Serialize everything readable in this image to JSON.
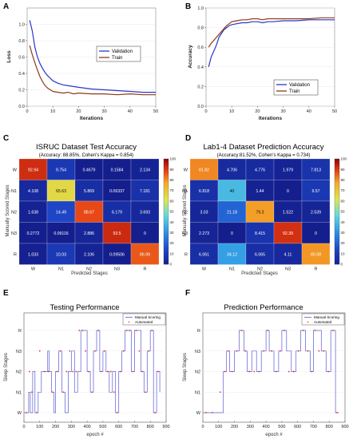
{
  "panel_letters": [
    "A",
    "B",
    "C",
    "D",
    "E",
    "F"
  ],
  "chart_data": [
    {
      "panel": "A",
      "type": "line",
      "xlabel": "Iterations",
      "ylabel": "Loss",
      "xlim": [
        0,
        50
      ],
      "ylim": [
        0,
        1.2
      ],
      "xticks": [
        "0",
        "10",
        "20",
        "30",
        "40",
        "50"
      ],
      "yticks": [
        "0.0",
        "0.2",
        "0.4",
        "0.6",
        "0.8",
        "1.0"
      ],
      "legend": "top-right",
      "series": [
        {
          "name": "Validation",
          "color": "#2b35c8",
          "x": [
            1,
            2,
            3,
            4,
            5,
            6,
            7,
            8,
            9,
            10,
            12,
            14,
            16,
            18,
            20,
            25,
            30,
            35,
            40,
            45,
            50
          ],
          "y": [
            1.05,
            0.92,
            0.72,
            0.6,
            0.52,
            0.46,
            0.41,
            0.37,
            0.34,
            0.31,
            0.28,
            0.26,
            0.25,
            0.24,
            0.23,
            0.21,
            0.2,
            0.19,
            0.18,
            0.17,
            0.17
          ]
        },
        {
          "name": "Train",
          "color": "#8b3a1a",
          "x": [
            1,
            2,
            3,
            4,
            5,
            6,
            7,
            8,
            9,
            10,
            12,
            14,
            16,
            18,
            20,
            25,
            30,
            35,
            40,
            45,
            50
          ],
          "y": [
            0.74,
            0.63,
            0.53,
            0.44,
            0.36,
            0.3,
            0.25,
            0.22,
            0.2,
            0.18,
            0.17,
            0.16,
            0.17,
            0.15,
            0.16,
            0.15,
            0.15,
            0.14,
            0.15,
            0.14,
            0.14
          ]
        }
      ]
    },
    {
      "panel": "B",
      "type": "line",
      "xlabel": "Iterations",
      "ylabel": "Accuracy",
      "xlim": [
        0,
        50
      ],
      "ylim": [
        0.0,
        1.0
      ],
      "xticks": [
        "0",
        "10",
        "20",
        "30",
        "40",
        "50"
      ],
      "yticks": [
        "0.0",
        "0.2",
        "0.4",
        "0.6",
        "0.8",
        "1.0"
      ],
      "legend": "bottom-right",
      "series": [
        {
          "name": "Validation",
          "color": "#2b35c8",
          "x": [
            1,
            2,
            3,
            4,
            5,
            6,
            7,
            8,
            9,
            10,
            12,
            14,
            16,
            18,
            20,
            22,
            24,
            26,
            30,
            35,
            40,
            45,
            50
          ],
          "y": [
            0.4,
            0.5,
            0.56,
            0.62,
            0.7,
            0.74,
            0.78,
            0.8,
            0.82,
            0.83,
            0.84,
            0.85,
            0.85,
            0.86,
            0.86,
            0.85,
            0.86,
            0.86,
            0.87,
            0.87,
            0.88,
            0.88,
            0.88
          ]
        },
        {
          "name": "Train",
          "color": "#8b3a1a",
          "x": [
            1,
            2,
            3,
            4,
            5,
            6,
            7,
            8,
            9,
            10,
            12,
            14,
            16,
            18,
            20,
            22,
            24,
            26,
            30,
            35,
            40,
            45,
            50
          ],
          "y": [
            0.6,
            0.64,
            0.67,
            0.7,
            0.73,
            0.76,
            0.79,
            0.82,
            0.84,
            0.86,
            0.87,
            0.88,
            0.88,
            0.89,
            0.89,
            0.88,
            0.89,
            0.89,
            0.89,
            0.89,
            0.89,
            0.9,
            0.9
          ]
        }
      ]
    },
    {
      "panel": "C",
      "type": "heatmap",
      "title": "ISRUC Dataset Test Accuracy",
      "subtitle": "(Accuracy: 88.85%, Cohen's Kappa = 0.854)",
      "xlabel": "Predicted Stages",
      "ylabel": "Manually Scored Stages",
      "categories": [
        "W",
        "N1",
        "N2",
        "N3",
        "R"
      ],
      "values": [
        [
          "92.94",
          "9.754",
          "0.4679",
          "0.1584",
          "2.134"
        ],
        [
          "4.108",
          "65.63",
          "5.869",
          "0.06337",
          "7.181"
        ],
        [
          "1.638",
          "14.49",
          "88.67",
          "6.179",
          "3.693"
        ],
        [
          "0.2772",
          "0.09116",
          "2.886",
          "93.5",
          "0"
        ],
        [
          "1.033",
          "10.03",
          "2.106",
          "0.09506",
          "86.99"
        ]
      ],
      "colorbar_ticks": [
        "100",
        "90",
        "80",
        "70",
        "60",
        "50",
        "40",
        "30",
        "20",
        "10",
        "0"
      ],
      "colorbar_range": [
        0,
        100
      ]
    },
    {
      "panel": "D",
      "type": "heatmap",
      "title": "Lab1-4 Dataset Prediction Accuracy",
      "subtitle": "(Accuracy:81.52%, Cohen's Kappa = 0.734)",
      "xlabel": "Predicted Stages",
      "ylabel": "Manually Scored Stages",
      "categories": [
        "W",
        "N1",
        "N2",
        "N3",
        "R"
      ],
      "values": [
        [
          "81.82",
          "4.706",
          "4.776",
          "1.979",
          "7.813"
        ],
        [
          "6.818",
          "40",
          "1.44",
          "0",
          "9.57"
        ],
        [
          "3.03",
          "21.18",
          "79.3",
          "1.522",
          "2.539"
        ],
        [
          "2.273",
          "0",
          "8.415",
          "92.39",
          "0"
        ],
        [
          "6.061",
          "34.12",
          "6.065",
          "4.11",
          "80.08"
        ]
      ],
      "colorbar_ticks": [
        "100",
        "90",
        "80",
        "70",
        "60",
        "50",
        "40",
        "30",
        "20",
        "10",
        "0"
      ],
      "colorbar_range": [
        0,
        100
      ]
    },
    {
      "panel": "E",
      "type": "line",
      "title": "Testing Performance",
      "xlabel": "epoch #",
      "ylabel": "Sleep Stages",
      "xlim": [
        0,
        900
      ],
      "xticks": [
        "0",
        "100",
        "200",
        "300",
        "400",
        "500",
        "600",
        "700",
        "800",
        "900"
      ],
      "yticks": [
        "W",
        "N1",
        "N2",
        "N3",
        "R"
      ],
      "legend": "top-right",
      "series": [
        {
          "name": "Manual Scoring",
          "color": "#5a5ad6",
          "x": [
            0,
            30,
            40,
            55,
            70,
            90,
            110,
            140,
            150,
            160,
            175,
            190,
            200,
            220,
            240,
            260,
            280,
            300,
            320,
            340,
            360,
            380,
            400,
            420,
            440,
            460,
            480,
            500,
            520,
            540,
            560,
            580,
            600,
            620,
            640,
            660,
            680,
            700,
            720,
            740,
            760,
            780,
            800,
            820,
            840,
            860
          ],
          "y": [
            0,
            1,
            0,
            2,
            0,
            1,
            2,
            2,
            3,
            2,
            1,
            0,
            2,
            3,
            1,
            0,
            2,
            3,
            1,
            2,
            4,
            4,
            2,
            1,
            3,
            4,
            2,
            3,
            2,
            1,
            2,
            0,
            2,
            3,
            4,
            4,
            2,
            4,
            4,
            2,
            1,
            3,
            4,
            0,
            2,
            1
          ]
        },
        {
          "name": "Automated",
          "color": "#e03030",
          "x": [
            15,
            35,
            50,
            80,
            100,
            130,
            155,
            180,
            210,
            230,
            250,
            270,
            290,
            310,
            330,
            350,
            370,
            390,
            410,
            430,
            450,
            470,
            490,
            510,
            530,
            550,
            570,
            590,
            610,
            630,
            650,
            670,
            690,
            710,
            730,
            750,
            770,
            790,
            810,
            830,
            850
          ],
          "y": [
            0,
            2,
            1,
            0,
            3,
            2,
            2,
            1,
            2,
            3,
            1,
            2,
            3,
            2,
            2,
            4,
            4,
            3,
            2,
            1,
            3,
            4,
            2,
            3,
            2,
            2,
            1,
            0,
            2,
            3,
            4,
            4,
            2,
            4,
            3,
            2,
            1,
            3,
            4,
            0,
            2
          ]
        }
      ]
    },
    {
      "panel": "F",
      "type": "line",
      "title": "Prediction Performance",
      "xlabel": "epoch #",
      "ylabel": "Sleep Stages",
      "xlim": [
        0,
        900
      ],
      "xticks": [
        "0",
        "100",
        "200",
        "300",
        "400",
        "500",
        "600",
        "700",
        "800",
        "900"
      ],
      "yticks": [
        "W",
        "N1",
        "N2",
        "N3",
        "R"
      ],
      "legend": "top-right",
      "series": [
        {
          "name": "Manual Scoring",
          "color": "#5a5ad6",
          "x": [
            0,
            50,
            100,
            130,
            150,
            170,
            200,
            230,
            260,
            280,
            310,
            340,
            370,
            400,
            420,
            450,
            480,
            500,
            530,
            560,
            590,
            620,
            650,
            680,
            700,
            720,
            750,
            780,
            810,
            840,
            860
          ],
          "y": [
            0,
            0,
            0,
            2,
            3,
            2,
            3,
            4,
            3,
            2,
            3,
            2,
            3,
            4,
            3,
            2,
            3,
            4,
            3,
            2,
            3,
            4,
            3,
            2,
            4,
            4,
            3,
            2,
            4,
            0,
            0
          ]
        },
        {
          "name": "Automated",
          "color": "#e03030",
          "x": [
            20,
            60,
            110,
            140,
            160,
            185,
            215,
            245,
            270,
            295,
            325,
            355,
            385,
            410,
            435,
            465,
            490,
            515,
            545,
            575,
            605,
            635,
            665,
            690,
            710,
            735,
            765,
            795,
            825,
            850
          ],
          "y": [
            0,
            0,
            1,
            2,
            3,
            2,
            3,
            4,
            3,
            2,
            2,
            2,
            3,
            4,
            3,
            2,
            3,
            4,
            2,
            2,
            3,
            4,
            3,
            2,
            4,
            3,
            3,
            2,
            4,
            0
          ]
        }
      ]
    }
  ]
}
